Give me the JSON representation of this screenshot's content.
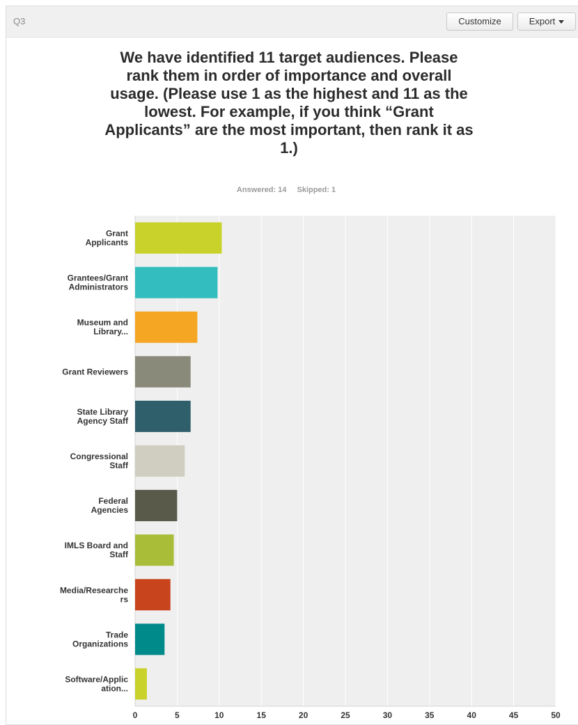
{
  "header": {
    "question_number": "Q3",
    "customize_label": "Customize",
    "export_label": "Export"
  },
  "question": {
    "title": "We have identified 11 target audiences. Please rank them in order of importance and overall usage. (Please use 1 as the highest and 11 as the lowest. For example, if you think “Grant Applicants” are the most important, then rank it as 1.)",
    "answered": "Answered: 14",
    "skipped": "Skipped: 1"
  },
  "chart_data": {
    "type": "bar",
    "orientation": "horizontal",
    "categories": [
      [
        "Grant",
        "Applicants"
      ],
      [
        "Grantees/Grant",
        "Administrators"
      ],
      [
        "Museum and",
        "Library..."
      ],
      [
        "Grant Reviewers"
      ],
      [
        "State Library",
        "Agency Staff"
      ],
      [
        "Congressional",
        "Staff"
      ],
      [
        "Federal",
        "Agencies"
      ],
      [
        "IMLS Board and",
        "Staff"
      ],
      [
        "Media/Researche",
        "rs"
      ],
      [
        "Trade",
        "Organizations"
      ],
      [
        "Software/Applic",
        "ation..."
      ]
    ],
    "values": [
      10.3,
      9.8,
      7.4,
      6.6,
      6.6,
      5.9,
      5.0,
      4.6,
      4.2,
      3.5,
      1.4
    ],
    "colors": [
      "#c8d22a",
      "#33bdbf",
      "#f5a623",
      "#8a8a7a",
      "#2f5f6b",
      "#cfcec0",
      "#5a5a4a",
      "#a9bd38",
      "#c8441d",
      "#008a8a",
      "#c8d22a"
    ],
    "xlim": [
      0,
      50
    ],
    "xticks": [
      0,
      5,
      10,
      15,
      20,
      25,
      30,
      35,
      40,
      45,
      50
    ],
    "grid": true,
    "plot_background": "#efefef",
    "xlabel": "",
    "ylabel": ""
  }
}
